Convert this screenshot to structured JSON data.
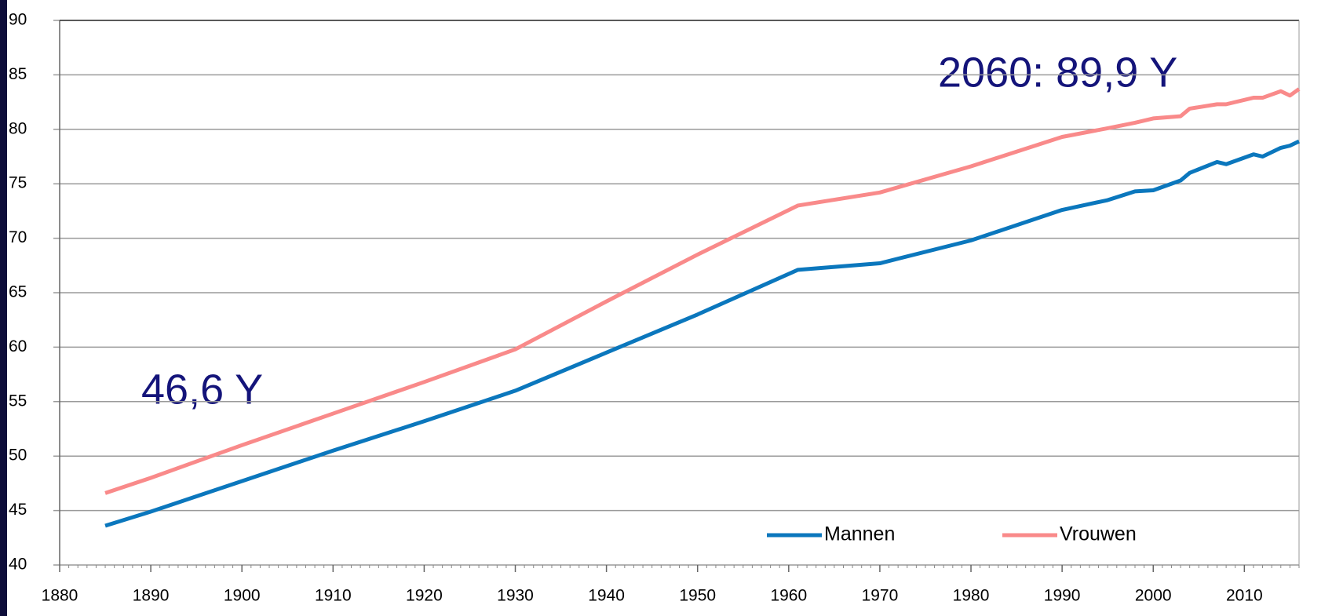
{
  "chart_data": {
    "type": "line",
    "annotations": [
      "46,6 Y",
      "2060: 89,9 Y"
    ],
    "x": [
      1885,
      1890,
      1900,
      1910,
      1920,
      1930,
      1940,
      1950,
      1961,
      1970,
      1980,
      1990,
      1995,
      1998,
      2000,
      2003,
      2004,
      2007,
      2008,
      2011,
      2012,
      2014,
      2015,
      2016
    ],
    "series": [
      {
        "name": "Mannen",
        "color": "#0b77bd",
        "values": [
          43.6,
          44.9,
          47.7,
          50.5,
          53.2,
          56,
          59.5,
          63,
          67.1,
          67.7,
          69.8,
          72.6,
          73.5,
          74.3,
          74.4,
          75.3,
          76,
          77,
          76.8,
          77.7,
          77.5,
          78.3,
          78.5,
          78.9
        ]
      },
      {
        "name": "Vrouwen",
        "color": "#f98a8a",
        "values": [
          46.6,
          48,
          51,
          53.9,
          56.8,
          59.8,
          64.2,
          68.5,
          73,
          74.2,
          76.6,
          79.3,
          80.1,
          80.6,
          81,
          81.2,
          81.9,
          82.3,
          82.3,
          82.9,
          82.9,
          83.5,
          83.1,
          83.7
        ]
      }
    ],
    "xlim": [
      1880,
      2016
    ],
    "xticks": [
      1880,
      1890,
      1900,
      1910,
      1920,
      1930,
      1940,
      1950,
      1960,
      1970,
      1980,
      1990,
      2000,
      2010
    ],
    "ylim": [
      40,
      90
    ],
    "yticks": [
      40,
      45,
      50,
      55,
      60,
      65,
      70,
      75,
      80,
      85,
      90
    ],
    "grid": true,
    "legend": "lower right"
  }
}
